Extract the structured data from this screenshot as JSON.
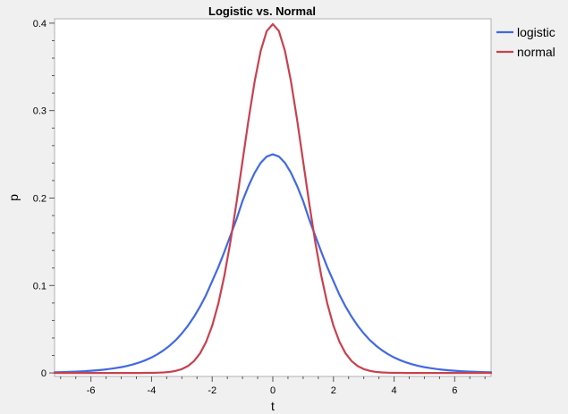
{
  "chart_data": {
    "type": "line",
    "title": "Logistic vs. Normal",
    "xlabel": "t",
    "ylabel": "p",
    "xlim": [
      -7.2,
      7.2
    ],
    "ylim": [
      -0.004,
      0.405
    ],
    "x_ticks": [
      -6,
      -4,
      -2,
      0,
      2,
      4,
      6
    ],
    "x_tick_labels": [
      "-6",
      "-4",
      "-2",
      "0",
      "2",
      "4",
      "6"
    ],
    "y_ticks": [
      0,
      0.1,
      0.2,
      0.3,
      0.4
    ],
    "y_tick_labels": [
      "0",
      "0.1",
      "0.2",
      "0.3",
      "0.4"
    ],
    "grid": false,
    "legend_position": "top-right-outside",
    "x": [
      -7.2,
      -7.0,
      -6.8,
      -6.6,
      -6.4,
      -6.2,
      -6.0,
      -5.8,
      -5.6,
      -5.4,
      -5.2,
      -5.0,
      -4.8,
      -4.6,
      -4.4,
      -4.2,
      -4.0,
      -3.8,
      -3.6,
      -3.4,
      -3.2,
      -3.0,
      -2.8,
      -2.6,
      -2.4,
      -2.2,
      -2.0,
      -1.8,
      -1.6,
      -1.4,
      -1.2,
      -1.0,
      -0.8,
      -0.6,
      -0.4,
      -0.2,
      0.0,
      0.2,
      0.4,
      0.6,
      0.8,
      1.0,
      1.2,
      1.4,
      1.6,
      1.8,
      2.0,
      2.2,
      2.4,
      2.6,
      2.8,
      3.0,
      3.2,
      3.4,
      3.6,
      3.8,
      4.0,
      4.2,
      4.4,
      4.6,
      4.8,
      5.0,
      5.2,
      5.4,
      5.6,
      5.8,
      6.0,
      6.2,
      6.4,
      6.6,
      6.8,
      7.0,
      7.2
    ],
    "series": [
      {
        "name": "logistic",
        "color": "#4169e1",
        "values": [
          0.0007,
          0.0009,
          0.0011,
          0.0014,
          0.0017,
          0.002,
          0.0025,
          0.003,
          0.0037,
          0.0045,
          0.0055,
          0.0066,
          0.0081,
          0.0099,
          0.012,
          0.0146,
          0.0177,
          0.0215,
          0.026,
          0.0313,
          0.0376,
          0.0452,
          0.054,
          0.0642,
          0.0759,
          0.0892,
          0.105,
          0.1207,
          0.1384,
          0.1569,
          0.1756,
          0.1966,
          0.2139,
          0.2288,
          0.2403,
          0.2475,
          0.25,
          0.2475,
          0.2403,
          0.2288,
          0.2139,
          0.1966,
          0.1756,
          0.1569,
          0.1384,
          0.1207,
          0.105,
          0.0892,
          0.0759,
          0.0642,
          0.054,
          0.0452,
          0.0376,
          0.0313,
          0.026,
          0.0215,
          0.0177,
          0.0146,
          0.012,
          0.0099,
          0.0081,
          0.0066,
          0.0055,
          0.0045,
          0.0037,
          0.003,
          0.0025,
          0.002,
          0.0017,
          0.0014,
          0.0011,
          0.0009,
          0.0007
        ]
      },
      {
        "name": "normal",
        "color": "#c8414f",
        "values": [
          0.0,
          0.0,
          0.0,
          0.0,
          0.0,
          0.0,
          0.0,
          0.0,
          0.0,
          0.0,
          0.0,
          0.0,
          0.0,
          0.0,
          0.0,
          0.0001,
          0.0001,
          0.0003,
          0.0006,
          0.0012,
          0.0024,
          0.0044,
          0.0079,
          0.0136,
          0.0224,
          0.0355,
          0.054,
          0.079,
          0.1109,
          0.1497,
          0.1942,
          0.242,
          0.2897,
          0.3332,
          0.3683,
          0.391,
          0.3989,
          0.391,
          0.3683,
          0.3332,
          0.2897,
          0.242,
          0.1942,
          0.1497,
          0.1109,
          0.079,
          0.054,
          0.0355,
          0.0224,
          0.0136,
          0.0079,
          0.0044,
          0.0024,
          0.0012,
          0.0006,
          0.0003,
          0.0001,
          0.0001,
          0.0,
          0.0,
          0.0,
          0.0,
          0.0,
          0.0,
          0.0,
          0.0,
          0.0,
          0.0,
          0.0,
          0.0,
          0.0,
          0.0,
          0.0
        ]
      }
    ]
  }
}
